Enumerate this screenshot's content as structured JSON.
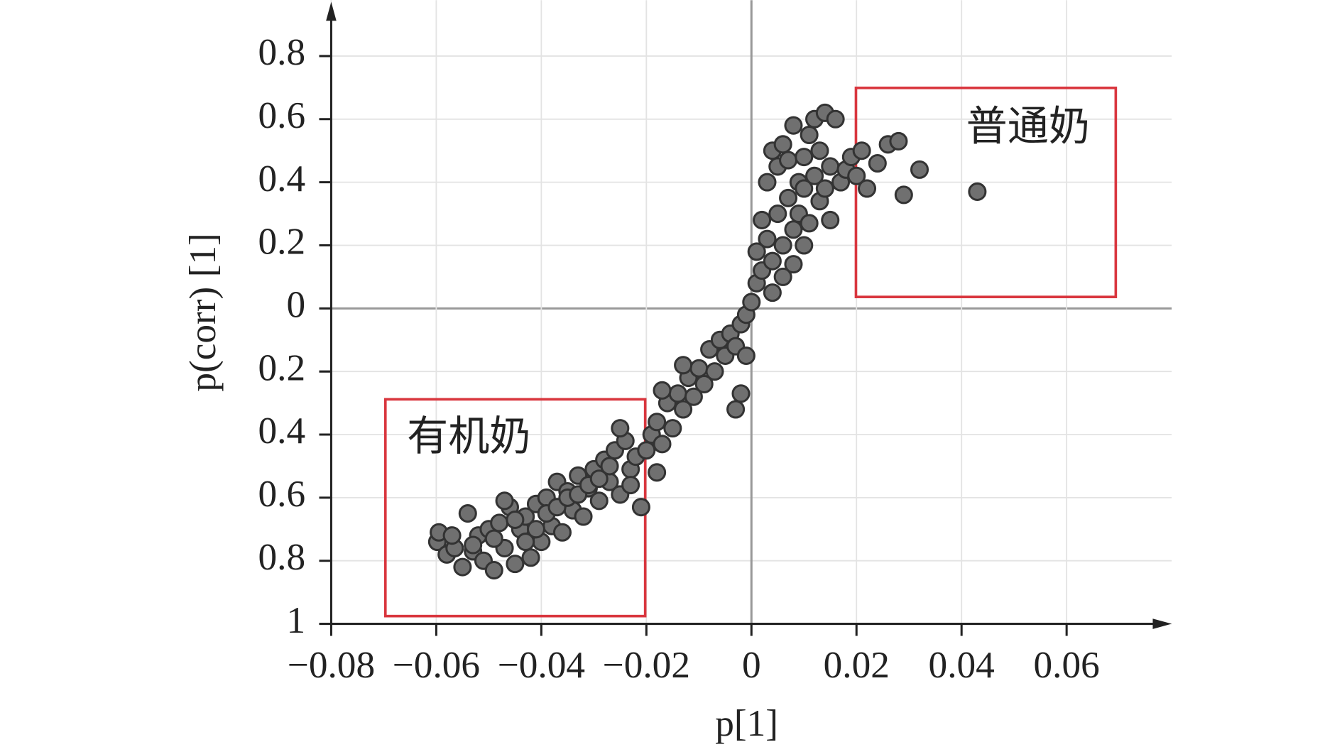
{
  "chart_data": {
    "type": "scatter",
    "x_label": "p[1]",
    "y_label": "p(corr) [1]",
    "xlim": [
      -0.08,
      0.08
    ],
    "ylim": [
      -1,
      0.95
    ],
    "xticks": [
      {
        "value": -0.08,
        "label": "−0.08"
      },
      {
        "value": -0.06,
        "label": "−0.06"
      },
      {
        "value": -0.04,
        "label": "−0.04"
      },
      {
        "value": -0.02,
        "label": "−0.02"
      },
      0,
      0.02,
      0.04,
      0.06
    ],
    "yticks": [
      {
        "value": -1,
        "label": "1"
      },
      {
        "value": -0.8,
        "label": "0.8"
      },
      {
        "value": -0.6,
        "label": "0.6"
      },
      {
        "value": -0.4,
        "label": "0.4"
      },
      {
        "value": -0.2,
        "label": "0.2"
      },
      0,
      0.2,
      0.4,
      0.6,
      0.8
    ],
    "grid": true,
    "annotations": [
      {
        "text": "普通奶",
        "color": "#d93a3a"
      },
      {
        "text": "有机奶",
        "color": "#333333"
      }
    ],
    "series": [
      {
        "color": "#707070",
        "x": [
          -0.0598,
          -0.0595,
          -0.058,
          -0.0565,
          -0.055,
          -0.054,
          -0.053,
          -0.052,
          -0.051,
          -0.05,
          -0.049,
          -0.048,
          -0.047,
          -0.046,
          -0.045,
          -0.044,
          -0.043,
          -0.042,
          -0.041,
          -0.04,
          -0.039,
          -0.038,
          -0.037,
          -0.036,
          -0.035,
          -0.034,
          -0.033,
          -0.032,
          -0.031,
          -0.03,
          -0.029,
          -0.028,
          -0.027,
          -0.026,
          -0.025,
          -0.024,
          -0.023,
          -0.022,
          -0.021,
          -0.057,
          -0.053,
          -0.049,
          -0.047,
          -0.045,
          -0.043,
          -0.041,
          -0.039,
          -0.037,
          -0.035,
          -0.033,
          -0.031,
          -0.029,
          -0.027,
          -0.025,
          -0.023,
          -0.02,
          -0.019,
          -0.018,
          -0.018,
          -0.017,
          -0.016,
          -0.015,
          -0.014,
          -0.013,
          -0.012,
          -0.011,
          -0.01,
          -0.009,
          -0.008,
          -0.007,
          -0.006,
          -0.005,
          -0.004,
          -0.003,
          -0.003,
          -0.002,
          -0.002,
          -0.001,
          -0.001,
          -0.017,
          -0.013,
          0.0,
          0.001,
          0.001,
          0.002,
          0.002,
          0.003,
          0.003,
          0.004,
          0.004,
          0.005,
          0.005,
          0.006,
          0.006,
          0.007,
          0.007,
          0.008,
          0.008,
          0.009,
          0.009,
          0.01,
          0.01,
          0.011,
          0.011,
          0.012,
          0.012,
          0.013,
          0.013,
          0.014,
          0.014,
          0.015,
          0.015,
          0.016,
          0.017,
          0.018,
          0.019,
          0.02,
          0.021,
          0.022,
          0.024,
          0.026,
          0.028,
          0.029,
          0.032,
          0.043,
          0.004,
          0.006,
          0.008,
          0.01
        ],
        "y": [
          -0.74,
          -0.71,
          -0.78,
          -0.76,
          -0.82,
          -0.65,
          -0.77,
          -0.72,
          -0.8,
          -0.7,
          -0.83,
          -0.68,
          -0.76,
          -0.63,
          -0.81,
          -0.7,
          -0.66,
          -0.79,
          -0.62,
          -0.74,
          -0.6,
          -0.69,
          -0.55,
          -0.71,
          -0.58,
          -0.64,
          -0.53,
          -0.66,
          -0.57,
          -0.51,
          -0.61,
          -0.48,
          -0.55,
          -0.45,
          -0.59,
          -0.42,
          -0.51,
          -0.47,
          -0.63,
          -0.72,
          -0.75,
          -0.73,
          -0.61,
          -0.67,
          -0.74,
          -0.7,
          -0.65,
          -0.63,
          -0.6,
          -0.59,
          -0.56,
          -0.54,
          -0.5,
          -0.38,
          -0.56,
          -0.45,
          -0.4,
          -0.52,
          -0.36,
          -0.43,
          -0.3,
          -0.38,
          -0.27,
          -0.32,
          -0.22,
          -0.28,
          -0.19,
          -0.24,
          -0.13,
          -0.2,
          -0.1,
          -0.15,
          -0.08,
          -0.12,
          -0.32,
          -0.05,
          -0.27,
          -0.02,
          -0.15,
          -0.26,
          -0.18,
          0.02,
          0.08,
          0.18,
          0.12,
          0.28,
          0.22,
          0.4,
          0.15,
          0.5,
          0.3,
          0.45,
          0.2,
          0.52,
          0.35,
          0.47,
          0.25,
          0.58,
          0.4,
          0.3,
          0.48,
          0.38,
          0.55,
          0.27,
          0.42,
          0.6,
          0.34,
          0.5,
          0.62,
          0.38,
          0.45,
          0.28,
          0.6,
          0.4,
          0.44,
          0.48,
          0.42,
          0.5,
          0.38,
          0.46,
          0.52,
          0.53,
          0.36,
          0.44,
          0.37,
          0.05,
          0.1,
          0.14,
          0.2
        ]
      }
    ]
  }
}
